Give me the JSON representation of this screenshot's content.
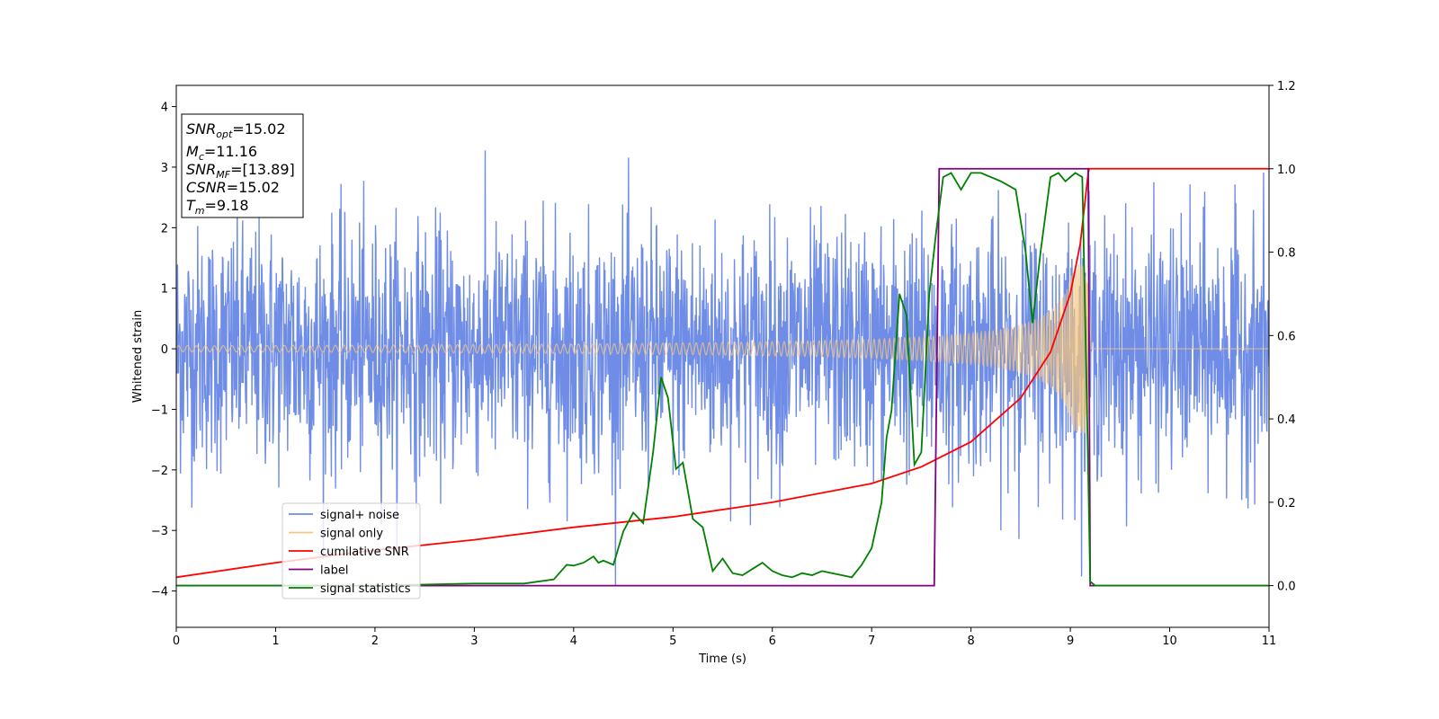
{
  "chart_data": {
    "type": "line",
    "xlabel": "Time (s)",
    "ylabel": "Whitened strain",
    "xlim": [
      0,
      11
    ],
    "ylim_left": [
      -4.6,
      4.35
    ],
    "ylim_right": [
      -0.1,
      1.2
    ],
    "x_ticks": [
      "0",
      "1",
      "2",
      "3",
      "4",
      "5",
      "6",
      "7",
      "8",
      "9",
      "10",
      "11"
    ],
    "y_ticks_left": [
      "−4",
      "−3",
      "−2",
      "−1",
      "0",
      "1",
      "2",
      "3",
      "4"
    ],
    "y_ticks_right": [
      "0.0",
      "0.2",
      "0.4",
      "0.6",
      "0.8",
      "1.0",
      "1.2"
    ],
    "info_box": {
      "snr_opt": {
        "sym": "SNR",
        "sub": "opt",
        "value": "=15.02"
      },
      "mc": {
        "sym": "M",
        "sub": "c",
        "value": "=11.16"
      },
      "snr_mf": {
        "sym": "SNR",
        "sub": "MF",
        "value": "=[13.89]"
      },
      "csnr": {
        "sym": "CSNR",
        "value": "=15.02"
      },
      "tm": {
        "sym": "T",
        "sub": "m",
        "value": "=9.18"
      }
    },
    "series": [
      {
        "name": "signal+ noise",
        "axis": "left",
        "color": "#6f8de6",
        "kind": "noise",
        "sigma": 1.0,
        "peak_abs": 3.9,
        "samples": 2600
      },
      {
        "name": "signal only",
        "axis": "left",
        "color": "#f5c77e",
        "kind": "chirp",
        "t_merger": 9.18,
        "amp_start": 0.05,
        "amp_end": 1.4
      },
      {
        "name": "cumilative SNR",
        "axis": "right",
        "color": "#ff0000",
        "x": [
          0,
          1,
          2,
          3,
          4,
          5,
          6,
          7,
          7.5,
          8,
          8.5,
          8.8,
          9,
          9.1,
          9.18,
          9.19,
          11
        ],
        "y": [
          0.02,
          0.055,
          0.085,
          0.11,
          0.14,
          0.165,
          0.2,
          0.245,
          0.285,
          0.345,
          0.45,
          0.56,
          0.7,
          0.82,
          0.99,
          1.0,
          1.0
        ]
      },
      {
        "name": "label",
        "axis": "right",
        "color": "#800080",
        "x": [
          0,
          7.63,
          7.68,
          9.18,
          9.2,
          11
        ],
        "y": [
          0,
          0,
          1,
          1,
          0,
          0
        ]
      },
      {
        "name": "signal statistics",
        "axis": "right",
        "color": "#008000",
        "x": [
          0,
          1,
          2,
          3,
          3.5,
          3.8,
          3.93,
          4.0,
          4.1,
          4.2,
          4.25,
          4.3,
          4.4,
          4.5,
          4.6,
          4.7,
          4.8,
          4.88,
          4.95,
          5.03,
          5.1,
          5.2,
          5.3,
          5.4,
          5.5,
          5.6,
          5.7,
          5.8,
          5.9,
          6.0,
          6.1,
          6.2,
          6.3,
          6.4,
          6.5,
          6.6,
          6.7,
          6.8,
          6.9,
          7.0,
          7.1,
          7.15,
          7.2,
          7.28,
          7.35,
          7.43,
          7.5,
          7.58,
          7.65,
          7.72,
          7.8,
          7.9,
          8.0,
          8.1,
          8.3,
          8.45,
          8.55,
          8.62,
          8.7,
          8.8,
          8.88,
          8.95,
          9.05,
          9.12,
          9.17,
          9.2,
          9.25,
          10,
          11
        ],
        "y": [
          0,
          0,
          0,
          0.005,
          0.005,
          0.015,
          0.05,
          0.048,
          0.055,
          0.07,
          0.055,
          0.06,
          0.05,
          0.13,
          0.175,
          0.15,
          0.32,
          0.5,
          0.45,
          0.28,
          0.295,
          0.16,
          0.14,
          0.035,
          0.065,
          0.03,
          0.025,
          0.04,
          0.055,
          0.035,
          0.025,
          0.02,
          0.03,
          0.025,
          0.035,
          0.03,
          0.025,
          0.02,
          0.05,
          0.09,
          0.2,
          0.355,
          0.42,
          0.7,
          0.65,
          0.29,
          0.32,
          0.7,
          0.85,
          0.98,
          0.99,
          0.95,
          0.99,
          0.99,
          0.97,
          0.95,
          0.8,
          0.63,
          0.8,
          0.98,
          0.99,
          0.97,
          0.99,
          0.98,
          0.4,
          0.01,
          0.0,
          0,
          0
        ]
      }
    ],
    "legend_position": "lower-left"
  }
}
